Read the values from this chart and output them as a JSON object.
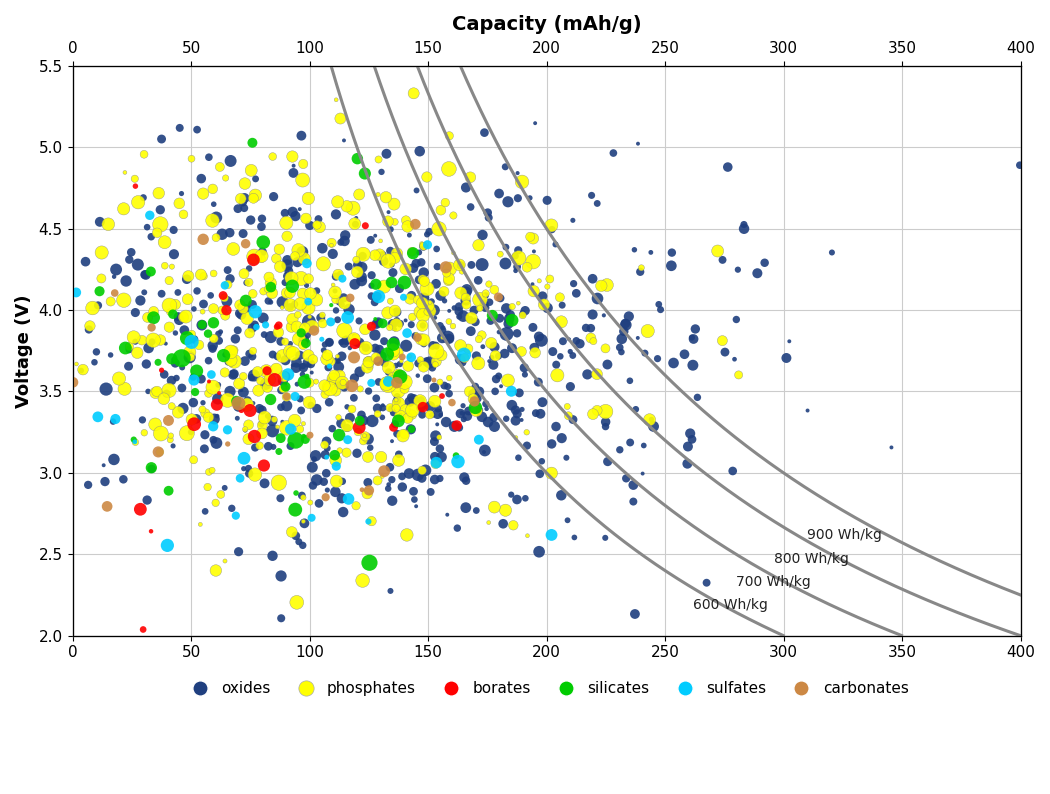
{
  "title_top": "Capacity (mAh/g)",
  "ylabel": "Voltage (V)",
  "xlim": [
    0,
    400
  ],
  "ylim": [
    2.0,
    5.5
  ],
  "xticks": [
    0,
    50,
    100,
    150,
    200,
    250,
    300,
    350,
    400
  ],
  "yticks": [
    2.0,
    2.5,
    3.0,
    3.5,
    4.0,
    4.5,
    5.0,
    5.5
  ],
  "categories": [
    {
      "name": "oxides",
      "color": "#1f3f7f",
      "zorder": 1
    },
    {
      "name": "phosphates",
      "color": "#ffff00",
      "zorder": 2
    },
    {
      "name": "borates",
      "color": "#ff0000",
      "zorder": 3
    },
    {
      "name": "silicates",
      "color": "#00cc00",
      "zorder": 4
    },
    {
      "name": "sulfates",
      "color": "#00ccff",
      "zorder": 5
    },
    {
      "name": "carbonates",
      "color": "#cc8844",
      "zorder": 6
    }
  ],
  "energy_curves": [
    600,
    700,
    800,
    900
  ],
  "energy_curve_labels": [
    "600 Wh/kg",
    "700 Wh/kg",
    "800 Wh/kg",
    "900 Wh/kg"
  ],
  "background_color": "#ffffff",
  "grid_color": "#cccccc",
  "seed": 42,
  "cat_params": {
    "oxides": {
      "cap_mu": 130,
      "cap_sig": 70,
      "v_mu": 3.7,
      "v_sig": 0.55,
      "n": 700,
      "s_mu": 35,
      "s_sig": 20
    },
    "phosphates": {
      "cap_mu": 110,
      "cap_sig": 55,
      "v_mu": 3.85,
      "v_sig": 0.55,
      "n": 450,
      "s_mu": 55,
      "s_sig": 30
    },
    "borates": {
      "cap_mu": 80,
      "cap_sig": 40,
      "v_mu": 3.6,
      "v_sig": 0.6,
      "n": 30,
      "s_mu": 45,
      "s_sig": 25
    },
    "silicates": {
      "cap_mu": 85,
      "cap_sig": 40,
      "v_mu": 3.7,
      "v_sig": 0.6,
      "n": 60,
      "s_mu": 55,
      "s_sig": 35
    },
    "sulfates": {
      "cap_mu": 100,
      "cap_sig": 50,
      "v_mu": 3.8,
      "v_sig": 0.6,
      "n": 50,
      "s_mu": 55,
      "s_sig": 30
    },
    "carbonates": {
      "cap_mu": 110,
      "cap_sig": 50,
      "v_mu": 3.6,
      "v_sig": 0.5,
      "n": 30,
      "s_mu": 45,
      "s_sig": 25
    }
  },
  "energy_label_positions": [
    [
      310,
      2.62,
      "900 Wh/kg"
    ],
    [
      296,
      2.47,
      "800 Wh/kg"
    ],
    [
      280,
      2.33,
      "700 Wh/kg"
    ],
    [
      262,
      2.19,
      "600 Wh/kg"
    ]
  ]
}
